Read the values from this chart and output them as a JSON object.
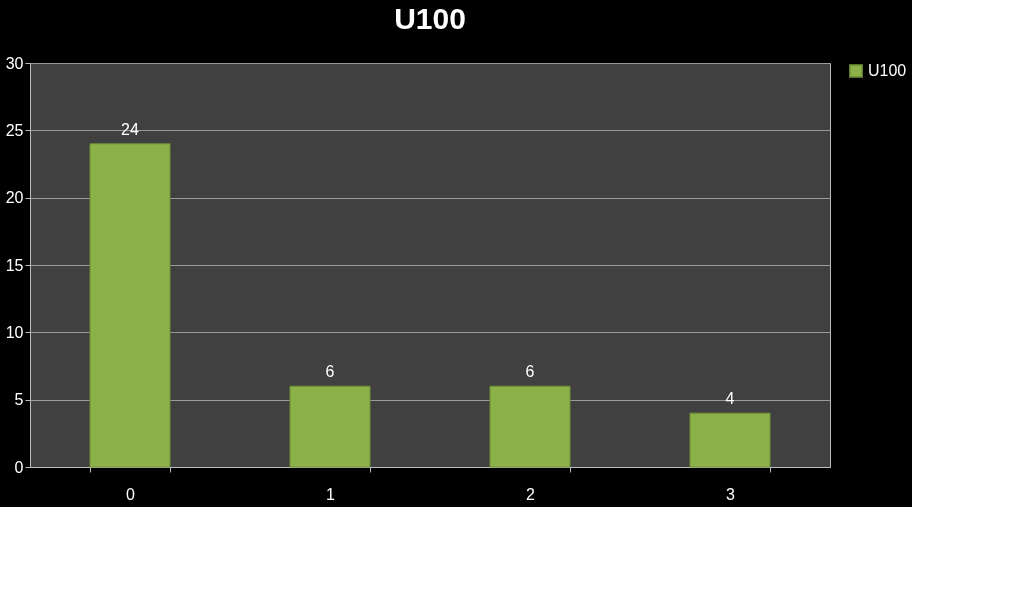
{
  "chart_data": {
    "type": "bar",
    "title": "U100",
    "categories": [
      "0",
      "1",
      "2",
      "3"
    ],
    "series": [
      {
        "name": "U100",
        "color": "#8db14a",
        "values": [
          24,
          6,
          6,
          4
        ]
      }
    ],
    "ylim": [
      0,
      30
    ],
    "yticks": [
      0,
      5,
      10,
      15,
      20,
      25,
      30
    ],
    "grid": "y",
    "legend": "right",
    "data_labels": true
  }
}
